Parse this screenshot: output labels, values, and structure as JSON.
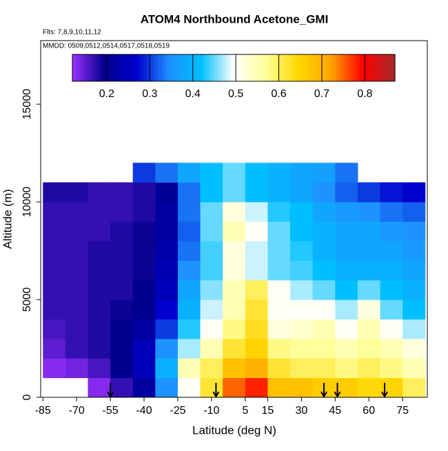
{
  "chart_data": {
    "type": "heatmap",
    "title": "ATOM4 Northbound Acetone_GMI",
    "subtitle": "Flts: 7,8,9,10,11,12",
    "subtitle2": "MMDD: 0509,0512,0514,0517,0518,0519",
    "x_label": "Latitude (deg N)",
    "y_label": "Altitude (m)",
    "xlim": [
      -86,
      86
    ],
    "ylim": [
      0,
      18250
    ],
    "xticks": [
      -85,
      -70,
      -55,
      -40,
      -25,
      -10,
      5,
      15,
      30,
      45,
      60,
      75
    ],
    "yticks": [
      0,
      5000,
      10000,
      15000
    ],
    "x_edges": [
      -85,
      -75,
      -65,
      -55,
      -45,
      -35,
      -25,
      -15,
      -5,
      5,
      15,
      25,
      35,
      45,
      55,
      65,
      75,
      85
    ],
    "y_edges": [
      0,
      1000,
      2000,
      3000,
      4000,
      5000,
      6000,
      7000,
      8000,
      9000,
      10000,
      11000,
      12000
    ],
    "values": [
      [
        null,
        null,
        0.13,
        0.17,
        0.22,
        0.35,
        0.5,
        0.62,
        0.75,
        0.78,
        0.68,
        0.68,
        0.66,
        0.66,
        0.64,
        0.65,
        0.6
      ],
      [
        0.13,
        0.14,
        0.16,
        0.2,
        0.25,
        0.4,
        0.55,
        0.6,
        0.68,
        0.7,
        0.62,
        0.6,
        0.6,
        0.58,
        0.6,
        0.58,
        0.55
      ],
      [
        0.15,
        0.17,
        0.18,
        0.2,
        0.25,
        0.35,
        0.47,
        0.55,
        0.62,
        0.65,
        0.58,
        0.57,
        0.57,
        0.55,
        0.57,
        0.55,
        0.52
      ],
      [
        0.16,
        0.17,
        0.18,
        0.2,
        0.22,
        0.3,
        0.43,
        0.5,
        0.58,
        0.63,
        0.52,
        0.53,
        0.55,
        0.5,
        0.55,
        0.5,
        0.47
      ],
      [
        0.17,
        0.17,
        0.18,
        0.19,
        0.2,
        0.27,
        0.4,
        0.48,
        0.55,
        0.62,
        0.5,
        0.5,
        0.5,
        0.47,
        0.52,
        0.45,
        0.42
      ],
      [
        0.17,
        0.17,
        0.18,
        0.18,
        0.2,
        0.25,
        0.38,
        0.46,
        0.55,
        0.6,
        0.5,
        0.47,
        0.45,
        0.42,
        0.45,
        0.42,
        0.4
      ],
      [
        0.17,
        0.17,
        0.18,
        0.18,
        0.19,
        0.24,
        0.35,
        0.44,
        0.52,
        0.48,
        0.45,
        0.44,
        0.42,
        0.4,
        0.4,
        0.4,
        0.38
      ],
      [
        0.17,
        0.17,
        0.18,
        0.18,
        0.19,
        0.23,
        0.33,
        0.44,
        0.52,
        0.48,
        0.45,
        0.43,
        0.4,
        0.38,
        0.38,
        0.38,
        0.36
      ],
      [
        0.17,
        0.17,
        0.17,
        0.18,
        0.19,
        0.22,
        0.32,
        0.45,
        0.55,
        0.5,
        0.45,
        0.42,
        0.4,
        0.38,
        0.38,
        0.36,
        0.35
      ],
      [
        0.17,
        0.17,
        0.17,
        0.17,
        0.18,
        0.22,
        0.33,
        0.45,
        0.52,
        0.48,
        0.43,
        0.42,
        0.38,
        0.36,
        0.35,
        0.33,
        0.32
      ],
      [
        0.18,
        0.18,
        0.17,
        0.17,
        0.18,
        0.21,
        0.33,
        0.42,
        0.45,
        0.42,
        0.4,
        0.38,
        0.35,
        0.32,
        0.3,
        0.28,
        0.27
      ],
      [
        null,
        null,
        null,
        null,
        0.3,
        0.33,
        0.38,
        0.42,
        0.45,
        0.42,
        0.4,
        0.38,
        0.37,
        0.33,
        null,
        null,
        null
      ]
    ],
    "clim": [
      0.12,
      0.87
    ],
    "cticks": [
      0.2,
      0.3,
      0.4,
      0.5,
      0.6,
      0.7,
      0.8
    ],
    "colorscale": [
      "#9b30ff",
      "#00008b",
      "#0000cd",
      "#1e90ff",
      "#00bfff",
      "#ffffff",
      "#ffff99",
      "#ffd700",
      "#ffa500",
      "#ff0000",
      "#a52a2a"
    ],
    "arrows_x": [
      -55,
      -8,
      40,
      46,
      67
    ]
  }
}
